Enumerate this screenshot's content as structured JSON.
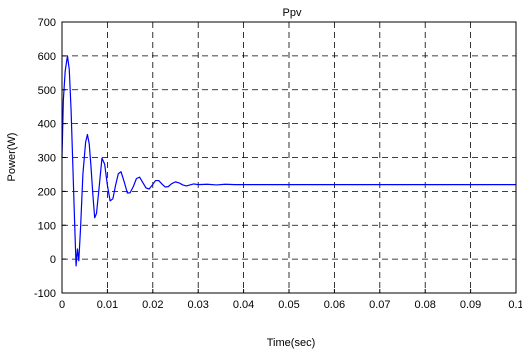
{
  "chart_data": {
    "type": "line",
    "title": "Ppv",
    "xlabel": "Time(sec)",
    "ylabel": "Power(W)",
    "xlim": [
      0,
      0.1
    ],
    "ylim": [
      -100,
      700
    ],
    "xticks": [
      "0",
      "0.01",
      "0.02",
      "0.03",
      "0.04",
      "0.05",
      "0.06",
      "0.07",
      "0.08",
      "0.09",
      "0.1"
    ],
    "yticks": [
      "-100",
      "0",
      "100",
      "200",
      "300",
      "400",
      "500",
      "600",
      "700"
    ],
    "xtick_values": [
      0,
      0.01,
      0.02,
      0.03,
      0.04,
      0.05,
      0.06,
      0.07,
      0.08,
      0.09,
      0.1
    ],
    "ytick_values": [
      -100,
      0,
      100,
      200,
      300,
      400,
      500,
      600,
      700
    ],
    "grid": true,
    "grid_style": "dashed",
    "line_color": "#0000ff",
    "series": [
      {
        "x": [
          0,
          0.0003,
          0.0007,
          0.0012,
          0.0016,
          0.002,
          0.0024,
          0.0028,
          0.0031,
          0.0034,
          0.0037,
          0.0041,
          0.0046,
          0.0052,
          0.0056,
          0.006,
          0.0064,
          0.0068,
          0.0072,
          0.0076,
          0.0082,
          0.0088,
          0.0094,
          0.01,
          0.0106,
          0.0112,
          0.0118,
          0.0124,
          0.013,
          0.0137,
          0.0144,
          0.015,
          0.0157,
          0.0164,
          0.0171,
          0.0178,
          0.0185,
          0.0192,
          0.0199,
          0.0206,
          0.0213,
          0.022,
          0.0227,
          0.0234,
          0.0242,
          0.025,
          0.0258,
          0.0266,
          0.0274,
          0.0282,
          0.029,
          0.03,
          0.032,
          0.034,
          0.036,
          0.038,
          0.04,
          0.045,
          0.05,
          0.055,
          0.06,
          0.065,
          0.07,
          0.075,
          0.08,
          0.085,
          0.09,
          0.095,
          0.1
        ],
        "y": [
          300,
          470,
          555,
          600,
          560,
          440,
          270,
          100,
          -20,
          30,
          -5,
          95,
          250,
          345,
          368,
          340,
          270,
          190,
          122,
          135,
          215,
          298,
          280,
          218,
          172,
          178,
          218,
          252,
          258,
          228,
          195,
          196,
          214,
          238,
          242,
          226,
          210,
          207,
          219,
          232,
          232,
          222,
          213,
          214,
          223,
          228,
          225,
          219,
          216,
          219,
          222,
          220,
          221,
          219,
          221,
          220,
          220,
          220,
          220,
          220,
          220,
          220,
          220,
          220,
          220,
          220,
          220,
          220,
          220
        ]
      }
    ]
  }
}
